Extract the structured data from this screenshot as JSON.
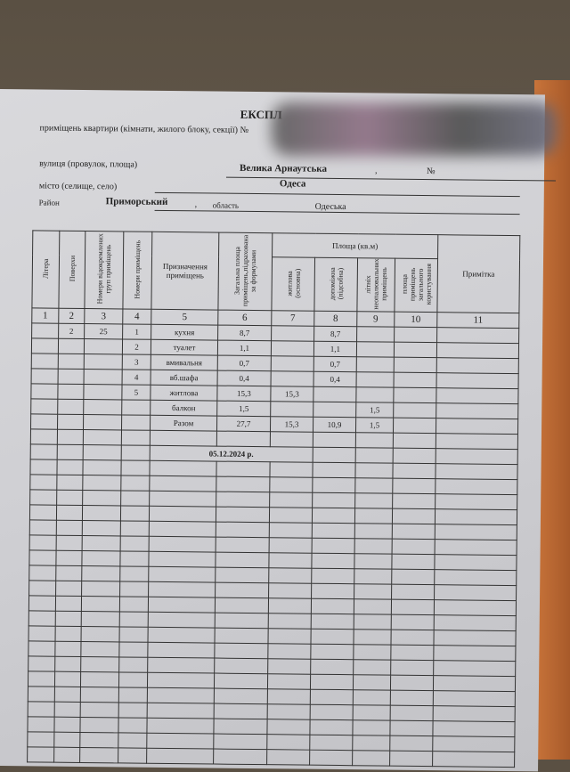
{
  "header": {
    "title": "ЕКСПЛ",
    "subtitle": "приміщень квартири (кімнати, жилого блоку, секції) №",
    "street_label": "вулиця (провулок, площа)",
    "street": "Велика Арнаутська",
    "comma": ",",
    "number_label": "№",
    "city_label": "місто (селище, село)",
    "city": "Одеса",
    "district_label": "Район",
    "district": "Приморський",
    "region_label": "область",
    "region": "Одеська"
  },
  "table": {
    "headers": [
      "Літера",
      "Поверхи",
      "Номери відокремлених груп приміщень",
      "Номери приміщень",
      "Призначення приміщень",
      "Загальна площа приміщень,підрахована за формулами",
      "Площа (кв.м)",
      "Примітка"
    ],
    "area_subheaders": [
      "житлова (основна)",
      "допоміжна (підсобна)",
      "літніх неопалювальних приміщень",
      "площа приміщень загального користування"
    ],
    "column_numbers": [
      "1",
      "2",
      "3",
      "4",
      "5",
      "6",
      "7",
      "8",
      "9",
      "10",
      "11"
    ],
    "rows": [
      [
        "",
        "2",
        "25",
        "1",
        "кухня",
        "8,7",
        "",
        "8,7",
        "",
        "",
        ""
      ],
      [
        "",
        "",
        "",
        "2",
        "туалет",
        "1,1",
        "",
        "1,1",
        "",
        "",
        ""
      ],
      [
        "",
        "",
        "",
        "3",
        "вмивальня",
        "0,7",
        "",
        "0,7",
        "",
        "",
        ""
      ],
      [
        "",
        "",
        "",
        "4",
        "вб.шафа",
        "0,4",
        "",
        "0,4",
        "",
        "",
        ""
      ],
      [
        "",
        "",
        "",
        "5",
        "житлова",
        "15,3",
        "15,3",
        "",
        "",
        "",
        ""
      ],
      [
        "",
        "",
        "",
        "",
        "балкон",
        "1,5",
        "",
        "",
        "1,5",
        "",
        ""
      ],
      [
        "",
        "",
        "",
        "",
        "Разом",
        "27,7",
        "15,3",
        "10,9",
        "1,5",
        "",
        ""
      ]
    ],
    "date": "05.12.2024  р."
  }
}
